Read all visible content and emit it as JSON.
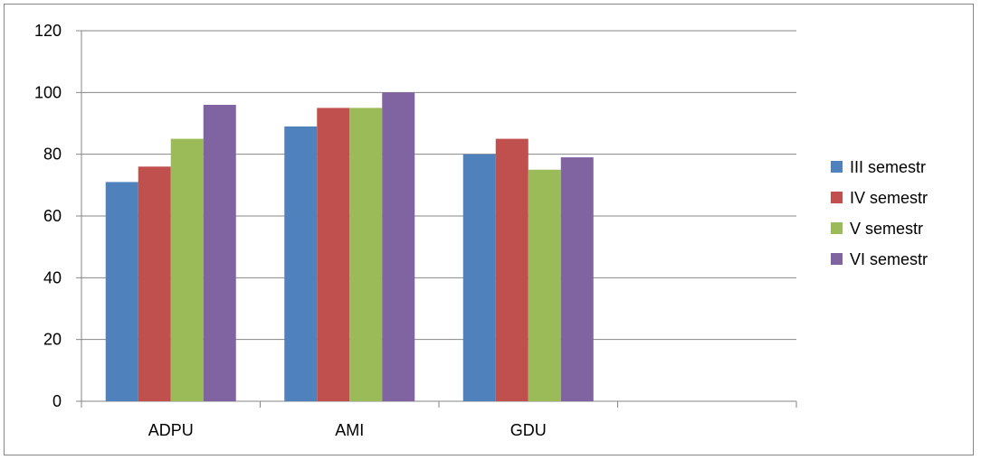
{
  "chart_data": {
    "type": "bar",
    "categories": [
      "ADPU",
      "AMI",
      "GDU",
      ""
    ],
    "series": [
      {
        "name": "III semestr",
        "color": "#4F81BD",
        "values": [
          71,
          89,
          80,
          null
        ]
      },
      {
        "name": "IV semestr",
        "color": "#C0504D",
        "values": [
          76,
          95,
          85,
          null
        ]
      },
      {
        "name": "V semestr",
        "color": "#9BBB59",
        "values": [
          85,
          95,
          75,
          null
        ]
      },
      {
        "name": "VI semestr",
        "color": "#8064A2",
        "values": [
          96,
          100,
          79,
          null
        ]
      }
    ],
    "y_ticks": [
      "0",
      "20",
      "40",
      "60",
      "80",
      "100",
      "120"
    ],
    "ylim": [
      0,
      120
    ],
    "grid": true,
    "legend_position": "right"
  }
}
